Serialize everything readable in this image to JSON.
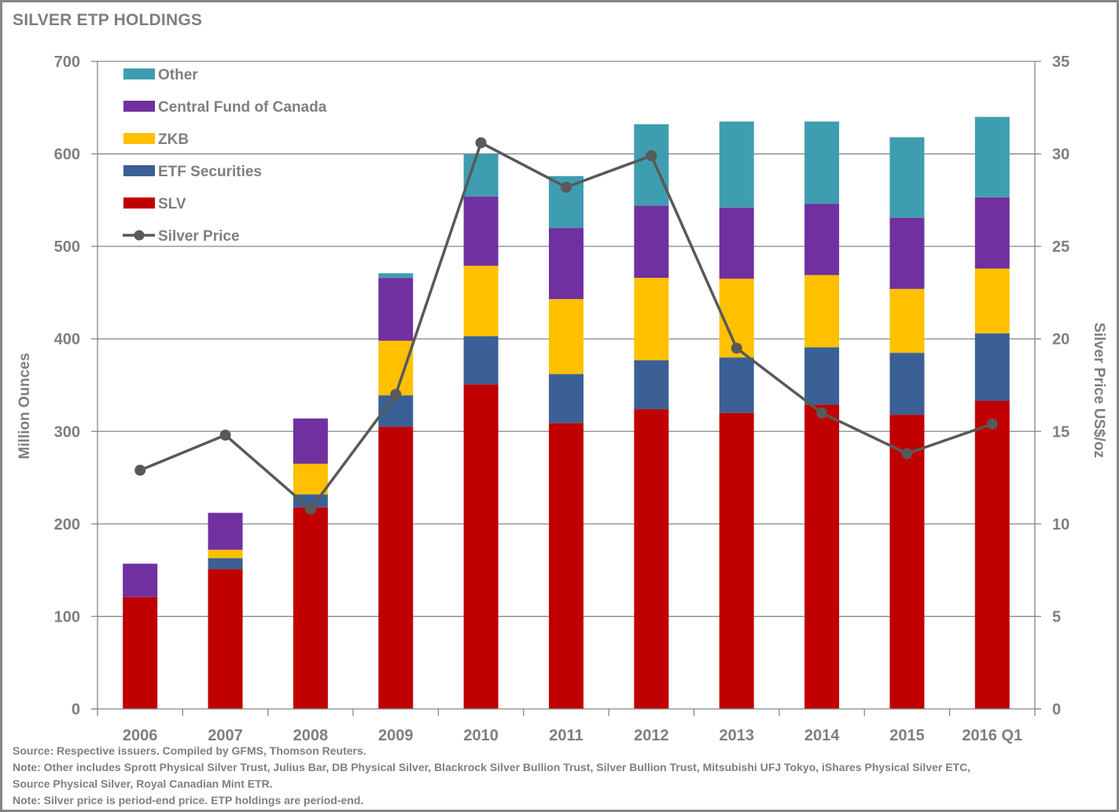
{
  "chart_data": {
    "type": "bar",
    "stacked": true,
    "title": "SILVER ETP HOLDINGS",
    "categories": [
      "2006",
      "2007",
      "2008",
      "2009",
      "2010",
      "2011",
      "2012",
      "2013",
      "2014",
      "2015",
      "2016 Q1"
    ],
    "ylabel": "Million Ounces",
    "y2label": "Silver Price US$/oz",
    "ylim": [
      0,
      700
    ],
    "yticks": [
      0,
      100,
      200,
      300,
      400,
      500,
      600,
      700
    ],
    "y2lim": [
      0,
      35
    ],
    "y2ticks": [
      0,
      5,
      10,
      15,
      20,
      25,
      30,
      35
    ],
    "grid": true,
    "legend_position": "top-left",
    "series": [
      {
        "name": "SLV",
        "color": "#C00000",
        "values": [
          121,
          151,
          218,
          305,
          351,
          309,
          324,
          320,
          329,
          318,
          333
        ]
      },
      {
        "name": "ETF Securities",
        "color": "#3A6096",
        "values": [
          0,
          12,
          14,
          34,
          52,
          53,
          53,
          60,
          62,
          67,
          73
        ]
      },
      {
        "name": "ZKB",
        "color": "#FFC000",
        "values": [
          0,
          9,
          33,
          59,
          76,
          81,
          89,
          85,
          78,
          69,
          70
        ]
      },
      {
        "name": "Central Fund of Canada",
        "color": "#7030A0",
        "values": [
          36,
          40,
          49,
          68,
          75,
          77,
          78,
          77,
          77,
          77,
          77
        ]
      },
      {
        "name": "Other",
        "color": "#3E9DB0",
        "values": [
          0,
          0,
          0,
          5,
          46,
          56,
          88,
          93,
          89,
          87,
          87
        ]
      }
    ],
    "line_series": {
      "name": "Silver Price",
      "axis": "right",
      "color": "#595959",
      "values": [
        12.9,
        14.8,
        10.8,
        17.0,
        30.6,
        28.2,
        29.9,
        19.5,
        16.0,
        13.8,
        15.4
      ]
    },
    "legend_order": [
      "Other",
      "Central Fund of Canada",
      "ZKB",
      "ETF Securities",
      "SLV",
      "Silver Price"
    ]
  },
  "notes": [
    "Source: Respective issuers. Compiled by GFMS, Thomson Reuters.",
    "Note: Other includes Sprott Physical Silver Trust, Julius Bar, DB Physical Silver, Blackrock Silver Bullion Trust, Silver Bullion Trust, Mitsubishi UFJ Tokyo, iShares Physical Silver ETC,",
    "Source Physical Silver, Royal Canadian  Mint ETR.",
    "Note: Silver price is period-end price. ETP holdings are period-end."
  ]
}
